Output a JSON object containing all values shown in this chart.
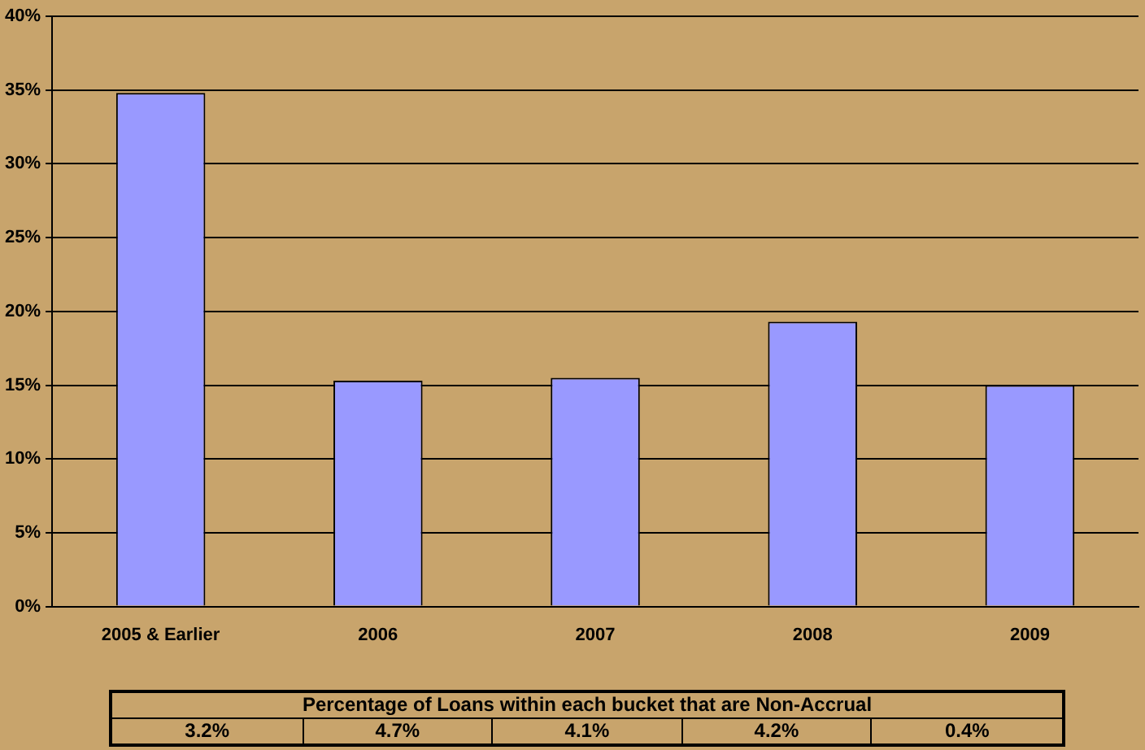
{
  "chart_data": {
    "type": "bar",
    "categories": [
      "2005 & Earlier",
      "2006",
      "2007",
      "2008",
      "2009"
    ],
    "values": [
      34.8,
      15.3,
      15.5,
      19.3,
      15.0
    ],
    "color": "#9999ff",
    "ylim": [
      0,
      40
    ],
    "yticks": [
      {
        "value": 0,
        "label": "0%"
      },
      {
        "value": 5,
        "label": "5%"
      },
      {
        "value": 10,
        "label": "10%"
      },
      {
        "value": 15,
        "label": "15%"
      },
      {
        "value": 20,
        "label": "20%"
      },
      {
        "value": 25,
        "label": "25%"
      },
      {
        "value": 30,
        "label": "30%"
      },
      {
        "value": 35,
        "label": "35%"
      },
      {
        "value": 40,
        "label": "40%"
      }
    ],
    "grid": "y",
    "annotations": [
      "Percentage of Loans within each bucket that are Non-Accrual",
      "3.2%",
      "4.7%",
      "4.1%",
      "4.2%",
      "0.4%"
    ]
  }
}
